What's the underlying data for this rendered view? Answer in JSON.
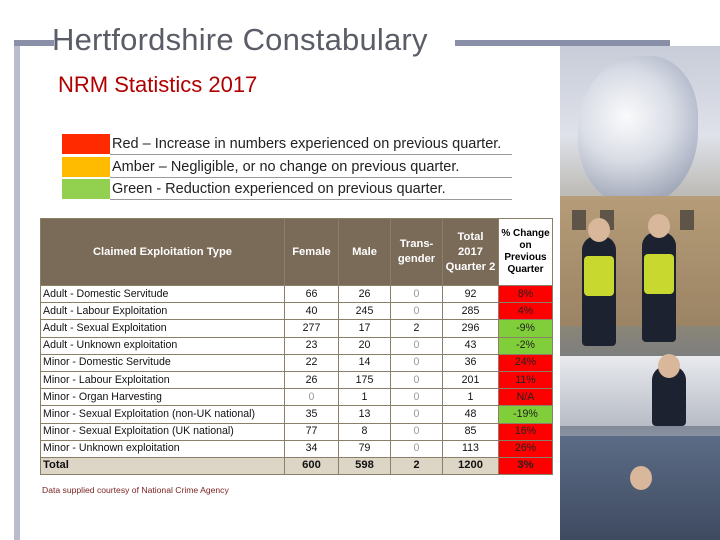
{
  "header": {
    "brand": "Hertfordshire Constabulary",
    "subtitle": "NRM Statistics 2017"
  },
  "legend": [
    {
      "color": "#ff2a00",
      "text": "Red – Increase in numbers experienced on previous quarter."
    },
    {
      "color": "#ffbb00",
      "text": "Amber – Negligible, or no change on previous quarter."
    },
    {
      "color": "#92d050",
      "text": "Green - Reduction experienced on previous quarter."
    }
  ],
  "table": {
    "headers": {
      "type": "Claimed Exploitation Type",
      "female": "Female",
      "male": "Male",
      "trans": "Trans-gender",
      "total": "Total 2017 Quarter 2",
      "pct": "% Change on Previous Quarter"
    },
    "rows": [
      {
        "type": "Adult - Domestic Servitude",
        "female": "66",
        "male": "26",
        "trans": "0",
        "total": "92",
        "pct": "8%",
        "status": "red"
      },
      {
        "type": "Adult - Labour Exploitation",
        "female": "40",
        "male": "245",
        "trans": "0",
        "total": "285",
        "pct": "4%",
        "status": "red"
      },
      {
        "type": "Adult - Sexual Exploitation",
        "female": "277",
        "male": "17",
        "trans": "2",
        "total": "296",
        "pct": "-9%",
        "status": "green"
      },
      {
        "type": "Adult - Unknown exploitation",
        "female": "23",
        "male": "20",
        "trans": "0",
        "total": "43",
        "pct": "-2%",
        "status": "green"
      },
      {
        "type": "Minor - Domestic Servitude",
        "female": "22",
        "male": "14",
        "trans": "0",
        "total": "36",
        "pct": "24%",
        "status": "red"
      },
      {
        "type": "Minor - Labour Exploitation",
        "female": "26",
        "male": "175",
        "trans": "0",
        "total": "201",
        "pct": "11%",
        "status": "red"
      },
      {
        "type": "Minor - Organ Harvesting",
        "female": "0",
        "male": "1",
        "trans": "0",
        "total": "1",
        "pct": "N/A",
        "status": "red"
      },
      {
        "type": "Minor - Sexual Exploitation (non-UK national)",
        "female": "35",
        "male": "13",
        "trans": "0",
        "total": "48",
        "pct": "-19%",
        "status": "green"
      },
      {
        "type": "Minor - Sexual Exploitation (UK national)",
        "female": "77",
        "male": "8",
        "trans": "0",
        "total": "85",
        "pct": "16%",
        "status": "red"
      },
      {
        "type": "Minor - Unknown exploitation",
        "female": "34",
        "male": "79",
        "trans": "0",
        "total": "113",
        "pct": "26%",
        "status": "red"
      }
    ],
    "total_row": {
      "type": "Total",
      "female": "600",
      "male": "598",
      "trans": "2",
      "total": "1200",
      "pct": "3%",
      "status": "red"
    }
  },
  "footnote": "Data supplied courtesy of National Crime Agency"
}
